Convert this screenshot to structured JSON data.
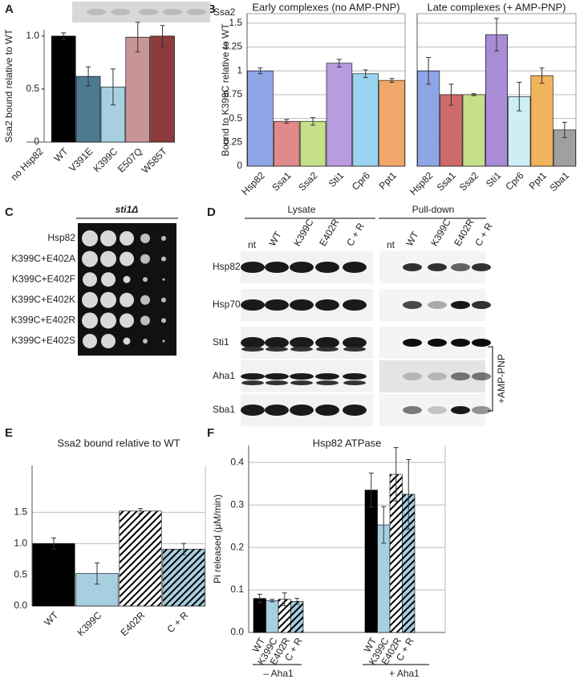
{
  "panel_labels": [
    "A",
    "B",
    "C",
    "D",
    "E",
    "F"
  ],
  "panel_a_blot": {
    "label": "Ssa2"
  },
  "panel_c": {
    "header": "sti1Δ",
    "rows": [
      "Hsp82",
      "K399C+E402A",
      "K399C+E402F",
      "K399C+E402K",
      "K399C+E402R",
      "K399C+E402S"
    ]
  },
  "panel_d": {
    "groups": [
      "Lysate",
      "Pull-down"
    ],
    "lanes": [
      "nt",
      "WT",
      "K399C",
      "E402R",
      "C + R"
    ],
    "rows": [
      "Hsp82",
      "Hsp70",
      "Sti1",
      "Aha1",
      "Sba1"
    ],
    "bracket_label": "+AMP-PNP"
  },
  "chart_data": [
    {
      "type": "bar",
      "ylabel": "Ssa2 bound relative to WT",
      "categories": [
        "no Hsp82",
        "WT",
        "V391E",
        "K399C",
        "E507Q",
        "W585T"
      ],
      "values": [
        0,
        1.0,
        0.62,
        0.52,
        0.99,
        1.0
      ],
      "errors": [
        null,
        0.03,
        0.09,
        0.17,
        0.14,
        0.1
      ],
      "colors": [
        "#000000",
        "#000000",
        "#4d7a91",
        "#a8cfe0",
        "#c99496",
        "#8d3b3c"
      ],
      "ylim": [
        0,
        1.06
      ],
      "yticks": [
        0,
        0.5,
        {
          "value": 1,
          "label": "1.0"
        }
      ],
      "grid": false
    },
    {
      "type": "bar",
      "title": "Early complexes (no AMP-PNP)",
      "ylabel": "Bound to K399C relative to WT",
      "categories": [
        "Hsp82",
        "Ssa1",
        "Ssa2",
        "Sti1",
        "Cpr6",
        "Ppt1"
      ],
      "values": [
        1.0,
        0.47,
        0.47,
        1.08,
        0.97,
        0.9
      ],
      "errors": [
        0.03,
        0.02,
        0.04,
        0.04,
        0.04,
        0.02
      ],
      "colors": [
        "#8fa6e6",
        "#e08a8a",
        "#c6e08a",
        "#b99be0",
        "#99d4f0",
        "#f0a86a"
      ],
      "ylim": [
        0,
        1.6
      ],
      "yticks": [
        0,
        0.25,
        0.5,
        0.75,
        1,
        1.25,
        1.5
      ],
      "grid": true
    },
    {
      "type": "bar",
      "title": "Late complexes (+ AMP-PNP)",
      "categories": [
        "Hsp82",
        "Ssa1",
        "Ssa2",
        "Sti1",
        "Cpr6",
        "Ppt1",
        "Sba1"
      ],
      "values": [
        1.0,
        0.75,
        0.75,
        1.38,
        0.73,
        0.95,
        0.38
      ],
      "errors": [
        0.14,
        0.11,
        0.01,
        0.17,
        0.15,
        0.08,
        0.08
      ],
      "colors": [
        "#8fa6e6",
        "#cf6a6a",
        "#c6e08a",
        "#a98bd6",
        "#cdeef5",
        "#f0b45a",
        "#a0a0a0"
      ],
      "ylim": [
        0,
        1.6
      ],
      "yticks": [
        0,
        0.25,
        0.5,
        0.75,
        1,
        1.25,
        1.5
      ],
      "grid": true,
      "tick_labels": false
    },
    {
      "type": "bar",
      "title": "Ssa2 bound relative to WT",
      "categories": [
        "WT",
        "K399C",
        "E402R",
        "C + R"
      ],
      "values": [
        1.0,
        0.52,
        1.52,
        0.91
      ],
      "errors": [
        0.09,
        0.17,
        0.04,
        0.09
      ],
      "colors": [
        "#000000",
        "#a8cfe0",
        "#ffffff",
        "#a8cfe0"
      ],
      "hatch": [
        false,
        false,
        true,
        true
      ],
      "ylim": [
        0,
        2.25
      ],
      "yticks": [
        {
          "value": 0,
          "label": "0.0"
        },
        0.5,
        {
          "value": 1,
          "label": "1.0"
        },
        1.5
      ],
      "grid": true
    },
    {
      "type": "grouped_bar",
      "title": "Hsp82 ATPase",
      "ylabel": "Pi released (μM/min)",
      "categories": [
        "– Aha1",
        "+ Aha1"
      ],
      "series": [
        {
          "name": "WT",
          "color": "#000000",
          "hatch": false,
          "values": [
            0.08,
            0.335
          ],
          "errors": [
            0.01,
            0.04
          ]
        },
        {
          "name": "K399C",
          "color": "#a8cfe0",
          "hatch": false,
          "values": [
            0.075,
            0.253
          ],
          "errors": [
            0.003,
            0.043
          ]
        },
        {
          "name": "E402R",
          "color": "#ffffff",
          "hatch": true,
          "values": [
            0.078,
            0.372
          ],
          "errors": [
            0.015,
            0.063
          ]
        },
        {
          "name": "C + R",
          "color": "#a8cfe0",
          "hatch": true,
          "values": [
            0.073,
            0.325
          ],
          "errors": [
            0.007,
            0.082
          ]
        }
      ],
      "ylim": [
        0,
        0.44
      ],
      "yticks": [
        {
          "value": 0,
          "label": "0.0"
        },
        0.1,
        0.2,
        0.3,
        0.4
      ],
      "grid": true
    }
  ]
}
